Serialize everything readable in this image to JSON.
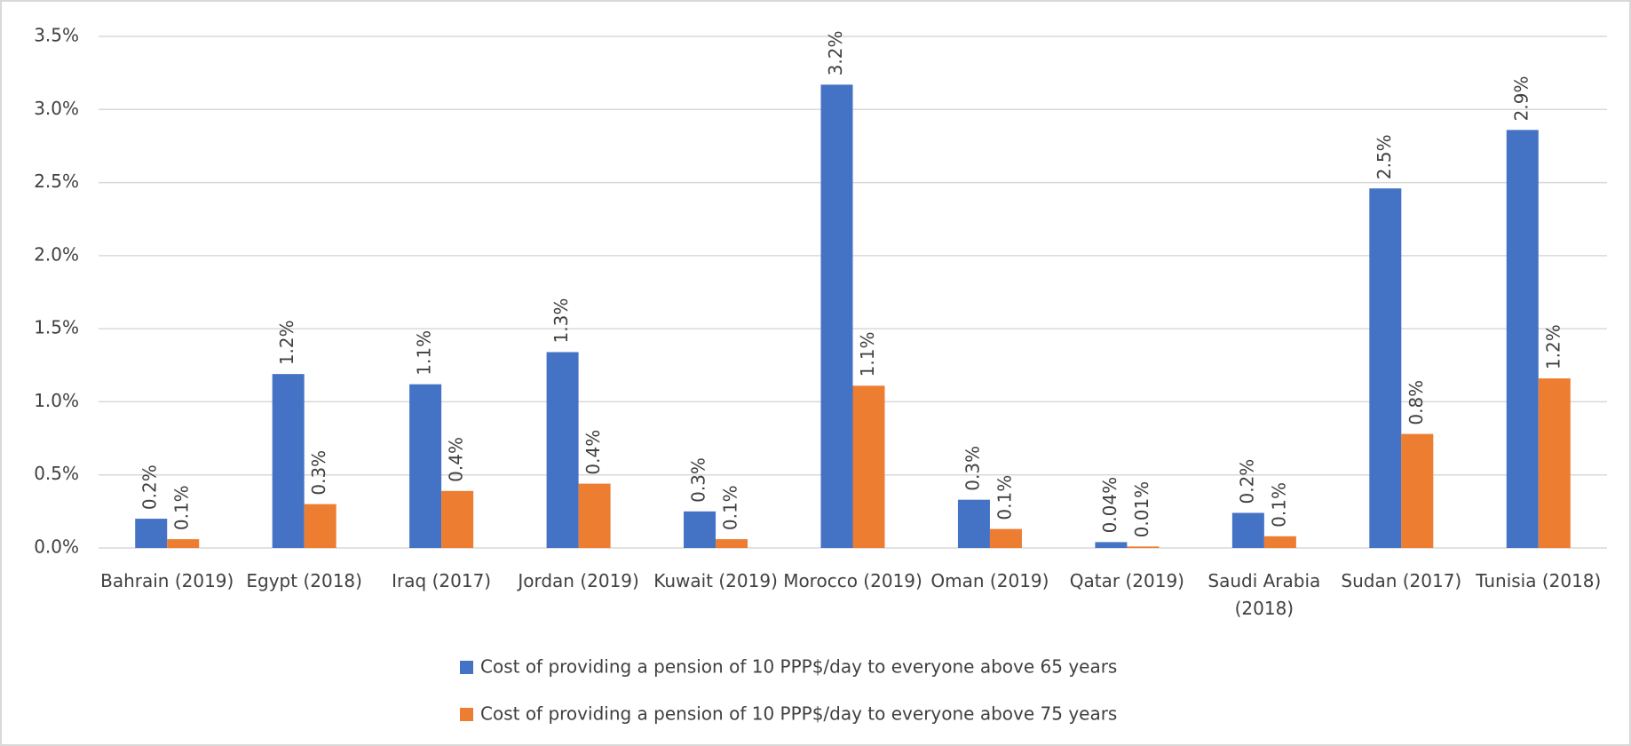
{
  "chart_data": {
    "type": "bar",
    "categories": [
      "Bahrain (2019)",
      "Egypt (2018)",
      "Iraq (2017)",
      "Jordan (2019)",
      "Kuwait (2019)",
      "Morocco (2019)",
      "Oman (2019)",
      "Qatar (2019)",
      "Saudi Arabia (2018)",
      "Sudan (2017)",
      "Tunisia (2018)"
    ],
    "series": [
      {
        "name": "Cost of providing a pension of 10 PPP$/day to everyone above 65 years",
        "color": "#4472c4",
        "values": [
          0.2,
          1.19,
          1.12,
          1.34,
          0.25,
          3.17,
          0.33,
          0.04,
          0.24,
          2.46,
          2.86
        ],
        "value_labels": [
          "0.2%",
          "1.2%",
          "1.1%",
          "1.3%",
          "0.3%",
          "3.2%",
          "0.3%",
          "0.04%",
          "0.2%",
          "2.5%",
          "2.9%"
        ]
      },
      {
        "name": "Cost of providing a pension of 10 PPP$/day to everyone above 75 years",
        "color": "#ed7d31",
        "values": [
          0.06,
          0.3,
          0.39,
          0.44,
          0.06,
          1.11,
          0.13,
          0.01,
          0.08,
          0.78,
          1.16
        ],
        "value_labels": [
          "0.1%",
          "0.3%",
          "0.4%",
          "0.4%",
          "0.1%",
          "1.1%",
          "0.1%",
          "0.01%",
          "0.1%",
          "0.8%",
          "1.2%"
        ]
      }
    ],
    "ylim": [
      0,
      3.5
    ],
    "yticks": [
      {
        "value": 0,
        "label": "0.0%"
      },
      {
        "value": 0.5,
        "label": "0.5%"
      },
      {
        "value": 1,
        "label": "1.0%"
      },
      {
        "value": 1.5,
        "label": "1.5%"
      },
      {
        "value": 2,
        "label": "2.0%"
      },
      {
        "value": 2.5,
        "label": "2.5%"
      },
      {
        "value": 3,
        "label": "3.0%"
      },
      {
        "value": 3.5,
        "label": "3.5%"
      }
    ],
    "grid": true,
    "legend": "bottom"
  }
}
